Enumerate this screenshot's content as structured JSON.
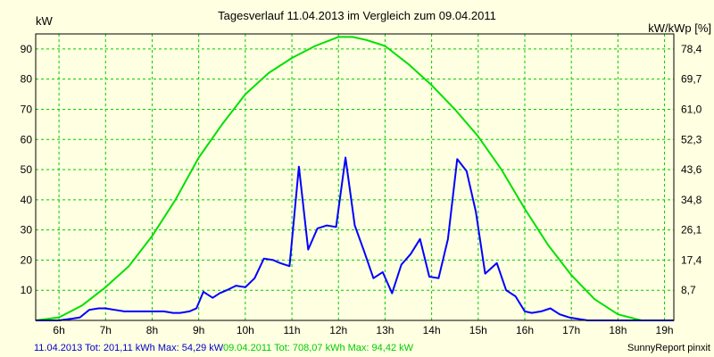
{
  "chart_data": {
    "type": "line",
    "title": "Tagesverlauf 11.04.2013 im Vergleich zum 09.04.2011",
    "ylabel_left": "kW",
    "ylabel_right": "kW/kWp [%]",
    "x_ticks": [
      "6h",
      "7h",
      "8h",
      "9h",
      "10h",
      "11h",
      "12h",
      "13h",
      "14h",
      "15h",
      "16h",
      "17h",
      "18h",
      "19h"
    ],
    "y_ticks_left": [
      10,
      20,
      30,
      40,
      50,
      60,
      70,
      80,
      90
    ],
    "y_ticks_right": [
      "8,7",
      "17,4",
      "26,1",
      "34,8",
      "43,6",
      "52,3",
      "61,0",
      "69,7",
      "78,4"
    ],
    "xlim": [
      5.5,
      19.2
    ],
    "ylim": [
      0,
      95
    ],
    "grid": true,
    "series": [
      {
        "name": "11.04.2013",
        "color": "#0000ff",
        "x": [
          5.5,
          6.0,
          6.25,
          6.45,
          6.65,
          6.85,
          7.0,
          7.2,
          7.4,
          7.6,
          7.8,
          8.0,
          8.25,
          8.45,
          8.6,
          8.8,
          8.95,
          9.1,
          9.3,
          9.45,
          9.6,
          9.8,
          10.0,
          10.2,
          10.4,
          10.6,
          10.75,
          10.95,
          11.15,
          11.35,
          11.55,
          11.75,
          11.95,
          12.15,
          12.35,
          12.55,
          12.75,
          12.95,
          13.15,
          13.35,
          13.55,
          13.75,
          13.95,
          14.15,
          14.35,
          14.55,
          14.75,
          14.95,
          15.15,
          15.4,
          15.6,
          15.8,
          16.0,
          16.15,
          16.35,
          16.55,
          16.75,
          16.95,
          17.15,
          17.35,
          17.55,
          17.75,
          17.95,
          18.15,
          18.35,
          18.5,
          19.2
        ],
        "values": [
          0,
          0,
          0.5,
          1,
          3.5,
          4,
          4,
          3.5,
          3,
          3,
          3,
          3,
          3,
          2.5,
          2.5,
          3,
          4,
          9.5,
          7.5,
          9,
          10,
          11.5,
          11,
          14,
          20.5,
          20,
          19,
          18,
          51,
          23.5,
          30.5,
          31.5,
          31,
          54,
          31.5,
          23,
          14,
          16,
          9,
          18.5,
          22,
          27,
          14.5,
          14,
          27,
          53.5,
          49.5,
          36,
          15.5,
          19,
          10,
          8,
          3,
          2.5,
          3,
          4,
          2,
          1,
          0.5,
          0,
          0,
          0,
          0,
          0,
          0,
          0,
          0
        ]
      },
      {
        "name": "09.04.2011",
        "color": "#00e000",
        "x": [
          5.5,
          6.0,
          6.5,
          7.0,
          7.5,
          8.0,
          8.5,
          9.0,
          9.5,
          10.0,
          10.5,
          11.0,
          11.5,
          12.0,
          12.3,
          12.6,
          13.0,
          13.5,
          14.0,
          14.5,
          15.0,
          15.5,
          16.0,
          16.5,
          17.0,
          17.5,
          18.0,
          18.5,
          18.9,
          19.2
        ],
        "values": [
          0,
          1,
          5,
          11,
          18,
          28,
          40,
          54,
          65,
          75,
          82,
          87,
          91,
          94,
          94,
          93,
          91,
          85,
          78,
          70,
          61,
          50,
          37,
          25,
          15,
          7,
          2,
          0,
          0,
          0
        ]
      }
    ]
  },
  "footer": {
    "series1_text": "11.04.2013 Tot: 201,11 kWh Max: 54,29 kW",
    "series2_text": "09.04.2011 Tot: 708,07 kWh Max: 94,42 kW",
    "credit": "SunnyReport pinxit"
  }
}
